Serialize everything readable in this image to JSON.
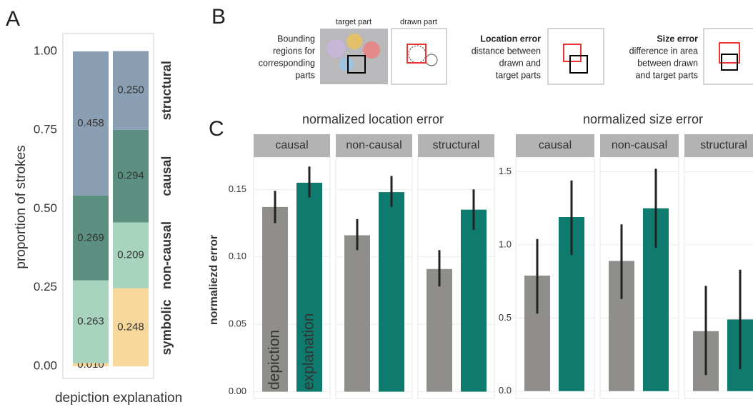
{
  "panels": [
    "A",
    "B",
    "C"
  ],
  "chart_data": [
    {
      "type": "stacked_bar",
      "ylabel": "proportion of strokes",
      "categories": [
        "depiction",
        "explanation"
      ],
      "category_colors": [
        "#4a4a4a",
        "#15806f"
      ],
      "series": [
        {
          "name": "symbolic",
          "color": "#f6d89d",
          "values": [
            0.01,
            0.248
          ],
          "value_labels": [
            "0.010",
            "0.248"
          ]
        },
        {
          "name": "non-causal",
          "color": "#a8d4bf",
          "values": [
            0.263,
            0.209
          ],
          "value_labels": [
            "0.263",
            "0.209"
          ]
        },
        {
          "name": "causal",
          "color": "#5b8f80",
          "values": [
            0.269,
            0.294
          ],
          "value_labels": [
            "0.269",
            "0.294"
          ]
        },
        {
          "name": "structural",
          "color": "#8a9fb3",
          "values": [
            0.458,
            0.25
          ],
          "value_labels": [
            "0.458",
            "0.250"
          ]
        }
      ],
      "ylim": [
        0,
        1
      ],
      "yticks": [
        {
          "value": 0,
          "label": "0.00"
        },
        0.25,
        {
          "value": 0.5,
          "label": "0.50"
        },
        0.75,
        {
          "value": 1,
          "label": "1.00"
        }
      ]
    },
    {
      "type": "faceted_bar",
      "title": "normalized location error",
      "ylabel": "normaliezd error",
      "facets": [
        "causal",
        "non-causal",
        "structural"
      ],
      "series": [
        {
          "name": "depiction",
          "color": "#8f8e8b",
          "values": [
            0.137,
            0.116,
            0.091
          ],
          "ci_low": [
            0.125,
            0.105,
            0.078
          ],
          "ci_high": [
            0.149,
            0.128,
            0.105
          ]
        },
        {
          "name": "explanation",
          "color": "#0f7a6e",
          "values": [
            0.155,
            0.148,
            0.135
          ],
          "ci_low": [
            0.144,
            0.137,
            0.12
          ],
          "ci_high": [
            0.167,
            0.16,
            0.15
          ]
        }
      ],
      "ylim": [
        -0.005,
        0.174
      ],
      "yticks": [
        {
          "value": 0,
          "label": "0.00"
        },
        0.05,
        {
          "value": 0.1,
          "label": "0.10"
        },
        0.15
      ],
      "grid": true
    },
    {
      "type": "faceted_bar",
      "title": "normalized size error",
      "facets": [
        "causal",
        "non-causal",
        "structural"
      ],
      "series": [
        {
          "color": "#8f8e8b",
          "values": [
            0.79,
            0.89,
            0.41
          ],
          "ci_low": [
            0.53,
            0.63,
            0.11
          ],
          "ci_high": [
            1.04,
            1.14,
            0.72
          ]
        },
        {
          "color": "#0f7a6e",
          "values": [
            1.19,
            1.25,
            0.49
          ],
          "ci_low": [
            0.93,
            0.98,
            0.15
          ],
          "ci_high": [
            1.44,
            1.52,
            0.83
          ]
        }
      ],
      "ylim": [
        -0.05,
        1.6
      ],
      "yticks": [
        {
          "value": 0,
          "label": "0.0"
        },
        0.5,
        {
          "value": 1,
          "label": "1.0"
        },
        1.5
      ],
      "grid": true
    }
  ],
  "diagram": {
    "target_label": "target part",
    "drawn_label": "drawn part",
    "bounding": [
      "Bounding",
      "regions for",
      "corresponding",
      "parts"
    ],
    "location_title": "Location error",
    "location_text": [
      "distance between",
      "drawn and",
      "target parts"
    ],
    "size_title": "Size error",
    "size_text": [
      "difference in area",
      "between drawn",
      "and target parts"
    ]
  }
}
